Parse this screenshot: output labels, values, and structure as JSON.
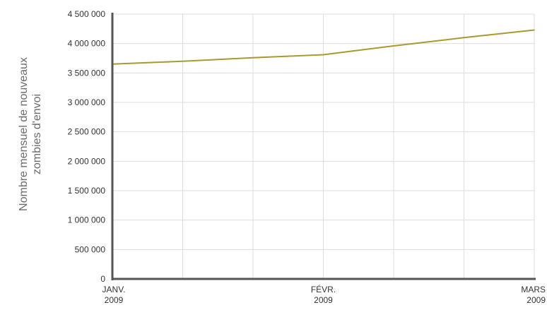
{
  "chart_data": {
    "type": "line",
    "ylabel_lines": [
      "Nombre mensuel de nouveaux",
      "zombies d'envoi"
    ],
    "xlabel": "",
    "x_ticks": [
      {
        "label_lines": [
          "JANV.",
          "2009"
        ],
        "x": 0
      },
      {
        "label_lines": [
          "FÉVR.",
          "2009"
        ],
        "x": 3
      },
      {
        "label_lines": [
          "MARS",
          "2009"
        ],
        "x": 6
      }
    ],
    "y_ticks": [
      {
        "value": 0,
        "label": "0"
      },
      {
        "value": 500000,
        "label": "500 000"
      },
      {
        "value": 1000000,
        "label": "1 000 000"
      },
      {
        "value": 1500000,
        "label": "1 500 000"
      },
      {
        "value": 2000000,
        "label": "2 000 000"
      },
      {
        "value": 2500000,
        "label": "2 500 000"
      },
      {
        "value": 3000000,
        "label": "3 000 000"
      },
      {
        "value": 3500000,
        "label": "3 500 000"
      },
      {
        "value": 4000000,
        "label": "4 000 000"
      },
      {
        "value": 4500000,
        "label": "4 500 000"
      }
    ],
    "xlim": [
      0,
      6
    ],
    "ylim": [
      0,
      4500000
    ],
    "x_gridlines": [
      0,
      1,
      2,
      3,
      4,
      5,
      6
    ],
    "grid": true,
    "series": [
      {
        "color": "#a89a2e",
        "points": [
          {
            "x": 0,
            "y": 3650000
          },
          {
            "x": 1,
            "y": 3700000
          },
          {
            "x": 2,
            "y": 3760000
          },
          {
            "x": 3,
            "y": 3810000
          },
          {
            "x": 4,
            "y": 3960000
          },
          {
            "x": 5,
            "y": 4100000
          },
          {
            "x": 6,
            "y": 4230000
          }
        ]
      }
    ],
    "colors": {
      "axis": "#555555",
      "grid": "#dddddd",
      "text": "#333333"
    }
  }
}
